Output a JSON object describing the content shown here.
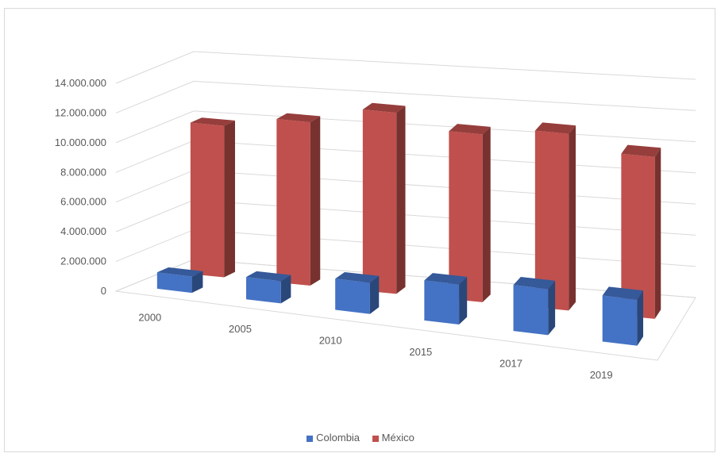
{
  "chart_data": {
    "type": "bar",
    "variant": "3d-column",
    "categories": [
      "2000",
      "2005",
      "2010",
      "2015",
      "2017",
      "2019"
    ],
    "series": [
      {
        "name": "Colombia",
        "color": "#4472c4",
        "values": [
          1100000,
          1500000,
          2100000,
          2700000,
          3100000,
          3100000
        ]
      },
      {
        "name": "México",
        "color": "#c0504d",
        "values": [
          10200000,
          11000000,
          12200000,
          11300000,
          11900000,
          10900000
        ]
      }
    ],
    "ylim": [
      0,
      14000000
    ],
    "yticks": [
      0,
      2000000,
      4000000,
      6000000,
      8000000,
      10000000,
      12000000,
      14000000
    ],
    "ytick_labels": [
      "0",
      "2.000.000",
      "4.000.000",
      "6.000.000",
      "8.000.000",
      "10.000.000",
      "12.000.000",
      "14.000.000"
    ],
    "grid": true,
    "legend_position": "bottom"
  }
}
